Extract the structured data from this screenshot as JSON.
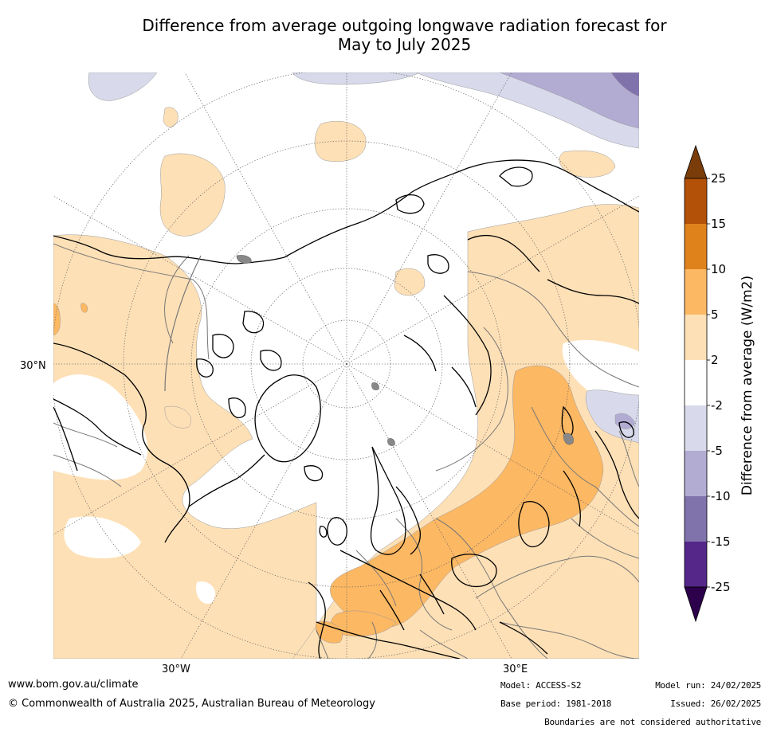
{
  "title": {
    "line1": "Difference from average outgoing longwave radiation forecast for",
    "line2": "May to July 2025"
  },
  "map": {
    "projection": "north-polar-stereographic",
    "labels": {
      "lat_30n": "30°N",
      "lon_30w": "30°W",
      "lon_30e": "30°E"
    }
  },
  "colorbar": {
    "title": "Difference from average (W/m2)",
    "ticks": [
      "25",
      "15",
      "10",
      "5",
      "2",
      "-2",
      "-5",
      "-10",
      "-15",
      "-25"
    ],
    "colors": {
      "gt25": "#7a3d0a",
      "15_25": "#b25107",
      "10_15": "#e0821b",
      "5_10": "#fdb863",
      "2_5": "#fee0b6",
      "neutral": "#ffffff",
      "m5_m2": "#d8daeb",
      "m10_m5": "#b2abd2",
      "m15_m10": "#8073ac",
      "m25_m15": "#542788",
      "lt_m25": "#2d004b"
    }
  },
  "footer": {
    "website": "www.bom.gov.au/climate",
    "copyright": "© Commonwealth of Australia 2025, Australian Bureau of Meteorology",
    "model": "Model: ACCESS-S2",
    "base_period": "Base period: 1981-2018",
    "model_run": "Model run: 24/02/2025",
    "issued": "Issued: 26/02/2025",
    "boundaries": "Boundaries are not considered authoritative"
  }
}
